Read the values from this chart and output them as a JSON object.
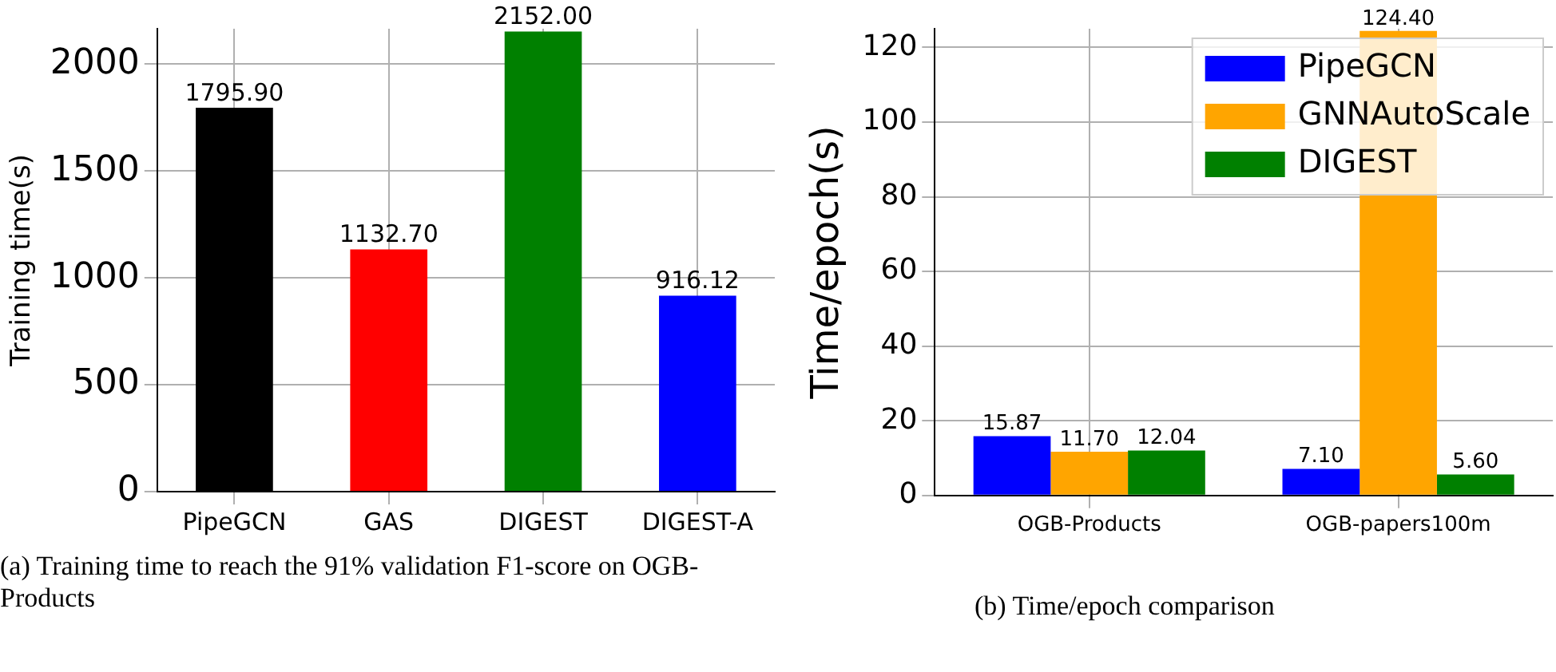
{
  "chart_data": [
    {
      "type": "bar",
      "ylabel": "Training time(s)",
      "categories": [
        "PipeGCN",
        "GAS",
        "DIGEST",
        "DIGEST-A"
      ],
      "values": [
        1795.9,
        1132.7,
        2152.0,
        916.12
      ],
      "value_labels": [
        "1795.90",
        "1132.70",
        "2152.00",
        "916.12"
      ],
      "colors": [
        "#000000",
        "#ff0000",
        "#008000",
        "#0000ff"
      ],
      "ylim": [
        0,
        2165
      ],
      "yticks": [
        0,
        500,
        1000,
        1500,
        2000
      ],
      "grid": true,
      "legend": false,
      "annotations": [
        "(a) Training time to reach the 91% validation F1-score on OGB-Products"
      ]
    },
    {
      "type": "bar",
      "ylabel": "Time/epoch(s)",
      "categories": [
        "OGB-Products",
        "OGB-papers100m"
      ],
      "series": [
        {
          "name": "PipeGCN",
          "color": "#0000ff",
          "values": [
            15.87,
            7.1
          ],
          "value_labels": [
            "15.87",
            "7.10"
          ]
        },
        {
          "name": "GNNAutoScale",
          "color": "#ffa500",
          "values": [
            11.7,
            124.4
          ],
          "value_labels": [
            "11.70",
            "124.40"
          ]
        },
        {
          "name": "DIGEST",
          "color": "#008000",
          "values": [
            12.04,
            5.6
          ],
          "value_labels": [
            "12.04",
            "5.60"
          ]
        }
      ],
      "ylim": [
        0,
        125
      ],
      "yticks": [
        0,
        20,
        40,
        60,
        80,
        100,
        120
      ],
      "grid": true,
      "legend": "top right",
      "annotations": [
        "(b) Time/epoch comparison"
      ]
    }
  ]
}
